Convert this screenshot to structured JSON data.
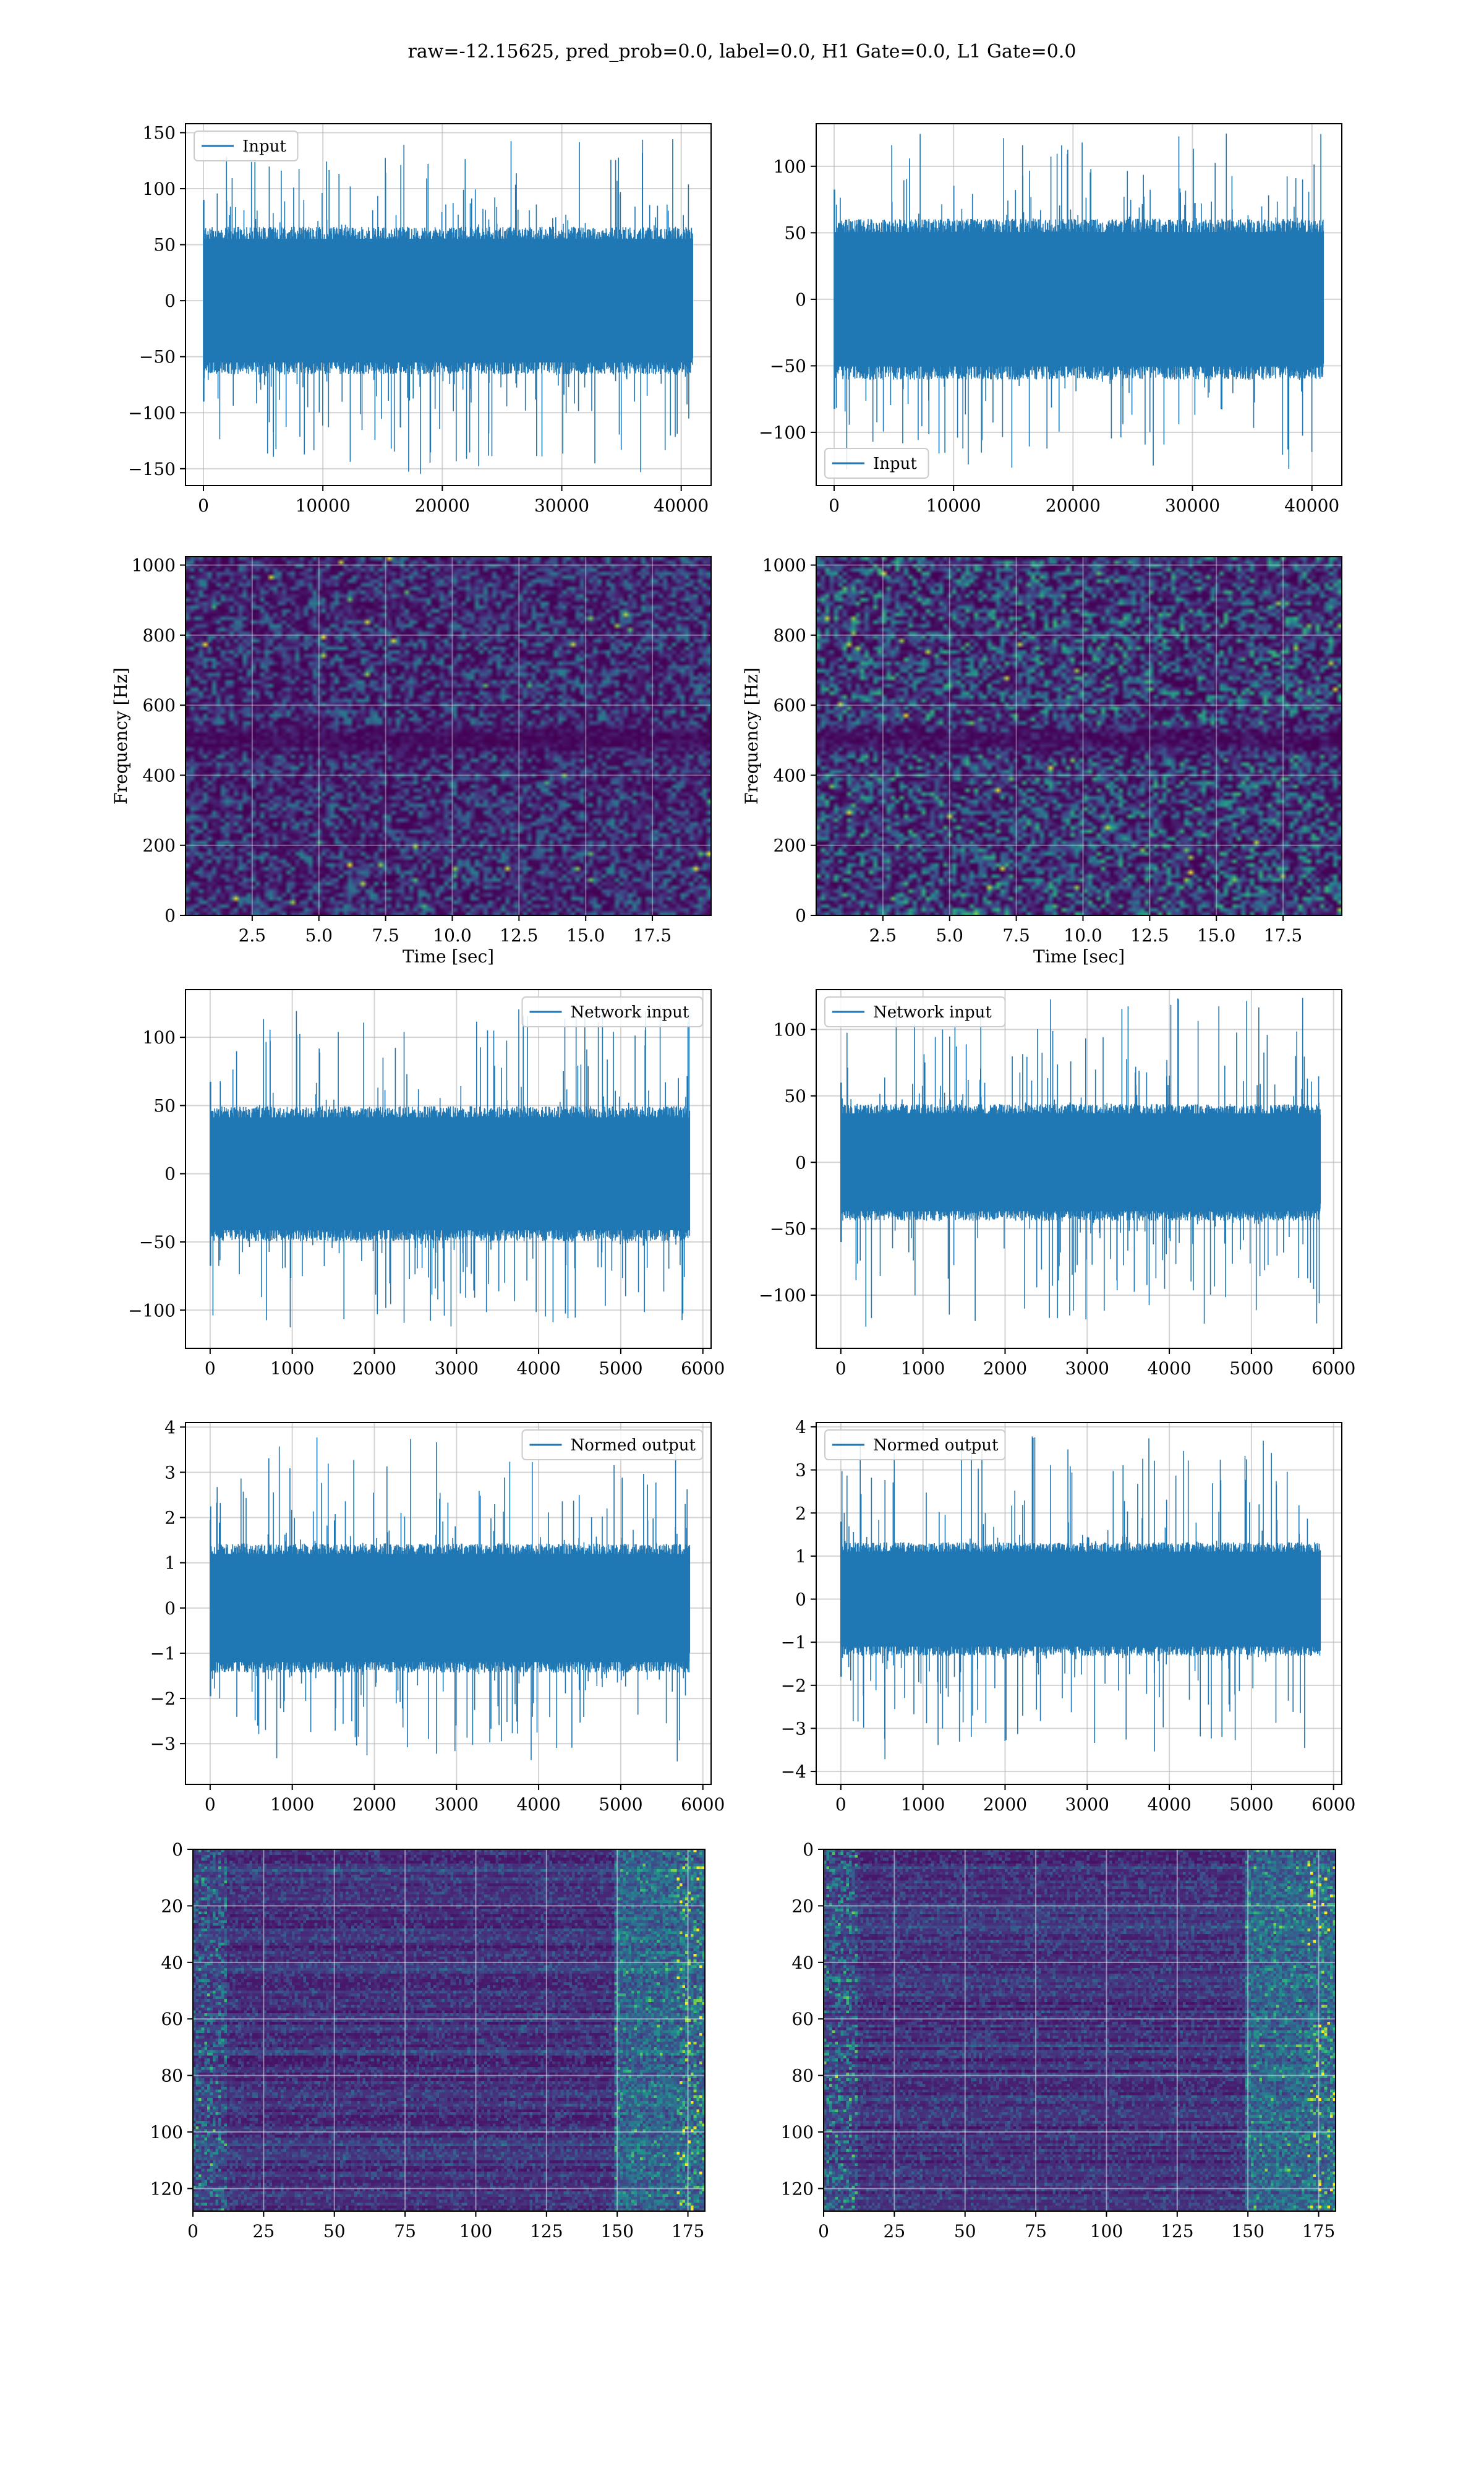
{
  "figure_title": "raw=-12.15625, pred_prob=0.0, label=0.0, H1 Gate=0.0, L1 Gate=0.0",
  "colors": {
    "line": "#1f77b4",
    "grid": "#b0b0b0",
    "viridis_dark": "#440154",
    "viridis_bright": "#fde725"
  },
  "chart_data": [
    {
      "id": "r1c1",
      "type": "line",
      "legend": "Input",
      "legend_loc": "upper left",
      "xlim": [
        -1500,
        42500
      ],
      "ylim": [
        -165,
        158
      ],
      "xticks": [
        0,
        10000,
        20000,
        30000,
        40000
      ],
      "yticks": [
        -150,
        -100,
        -50,
        0,
        50,
        100,
        150
      ],
      "data_x_range": [
        0,
        40959
      ],
      "band": [
        -60,
        60
      ],
      "spike_range": [
        -155,
        145
      ],
      "grid": true
    },
    {
      "id": "r1c2",
      "type": "line",
      "legend": "Input",
      "legend_loc": "lower left",
      "xlim": [
        -1500,
        42500
      ],
      "ylim": [
        -140,
        132
      ],
      "xticks": [
        0,
        10000,
        20000,
        30000,
        40000
      ],
      "yticks": [
        -100,
        -50,
        0,
        50,
        100
      ],
      "data_x_range": [
        0,
        40959
      ],
      "band": [
        -55,
        55
      ],
      "spike_range": [
        -130,
        125
      ],
      "grid": true
    },
    {
      "id": "r2c1",
      "type": "heatmap",
      "xlabel": "Time [sec]",
      "ylabel": "Frequency [Hz]",
      "xlim": [
        0,
        19.7
      ],
      "ylim": [
        0,
        1024
      ],
      "xticks": [
        2.5,
        5.0,
        7.5,
        10.0,
        12.5,
        15.0,
        17.5
      ],
      "yticks": [
        0,
        200,
        400,
        600,
        800,
        1000
      ],
      "colormap": "viridis",
      "dark_band_hz": 500,
      "grid": true
    },
    {
      "id": "r2c2",
      "type": "heatmap",
      "xlabel": "Time [sec]",
      "ylabel": "Frequency [Hz]",
      "xlim": [
        0,
        19.7
      ],
      "ylim": [
        0,
        1024
      ],
      "xticks": [
        2.5,
        5.0,
        7.5,
        10.0,
        12.5,
        15.0,
        17.5
      ],
      "yticks": [
        0,
        200,
        400,
        600,
        800,
        1000
      ],
      "colormap": "viridis",
      "dark_band_hz": 500,
      "grid": true
    },
    {
      "id": "r3c1",
      "type": "line",
      "legend": "Network input",
      "legend_loc": "upper right",
      "xlim": [
        -300,
        6100
      ],
      "ylim": [
        -128,
        135
      ],
      "xticks": [
        0,
        1000,
        2000,
        3000,
        4000,
        5000,
        6000
      ],
      "yticks": [
        -100,
        -50,
        0,
        50,
        100
      ],
      "data_x_range": [
        0,
        5839
      ],
      "band": [
        -45,
        45
      ],
      "spike_range": [
        -115,
        125
      ],
      "grid": true
    },
    {
      "id": "r3c2",
      "type": "line",
      "legend": "Network input",
      "legend_loc": "upper left",
      "xlim": [
        -300,
        6100
      ],
      "ylim": [
        -140,
        130
      ],
      "xticks": [
        0,
        1000,
        2000,
        3000,
        4000,
        5000,
        6000
      ],
      "yticks": [
        -100,
        -50,
        0,
        50,
        100
      ],
      "data_x_range": [
        0,
        5839
      ],
      "band": [
        -40,
        40
      ],
      "spike_range": [
        -125,
        125
      ],
      "grid": true
    },
    {
      "id": "r4c1",
      "type": "line",
      "legend": "Normed output",
      "legend_loc": "upper right",
      "xlim": [
        -300,
        6100
      ],
      "ylim": [
        -3.9,
        4.1
      ],
      "xticks": [
        0,
        1000,
        2000,
        3000,
        4000,
        5000,
        6000
      ],
      "yticks": [
        -3,
        -2,
        -1,
        0,
        1,
        2,
        3,
        4
      ],
      "data_x_range": [
        0,
        5839
      ],
      "band": [
        -1.3,
        1.3
      ],
      "spike_range": [
        -3.4,
        3.8
      ],
      "grid": true
    },
    {
      "id": "r4c2",
      "type": "line",
      "legend": "Normed output",
      "legend_loc": "upper left",
      "xlim": [
        -300,
        6100
      ],
      "ylim": [
        -4.3,
        4.1
      ],
      "xticks": [
        0,
        1000,
        2000,
        3000,
        4000,
        5000,
        6000
      ],
      "yticks": [
        -4,
        -3,
        -2,
        -1,
        0,
        1,
        2,
        3,
        4
      ],
      "data_x_range": [
        0,
        5839
      ],
      "band": [
        -1.2,
        1.2
      ],
      "spike_range": [
        -3.8,
        3.8
      ],
      "grid": true
    },
    {
      "id": "r5c1",
      "type": "heatmap",
      "xlim": [
        0,
        181
      ],
      "ylim": [
        128,
        0
      ],
      "xticks": [
        0,
        25,
        50,
        75,
        100,
        125,
        150,
        175
      ],
      "yticks": [
        0,
        20,
        40,
        60,
        80,
        100,
        120
      ],
      "colormap": "viridis",
      "rows": 128,
      "cols": 181,
      "grid": true
    },
    {
      "id": "r5c2",
      "type": "heatmap",
      "xlim": [
        0,
        181
      ],
      "ylim": [
        128,
        0
      ],
      "xticks": [
        0,
        25,
        50,
        75,
        100,
        125,
        150,
        175
      ],
      "yticks": [
        0,
        20,
        40,
        60,
        80,
        100,
        120
      ],
      "colormap": "viridis",
      "rows": 128,
      "cols": 181,
      "grid": true
    }
  ]
}
